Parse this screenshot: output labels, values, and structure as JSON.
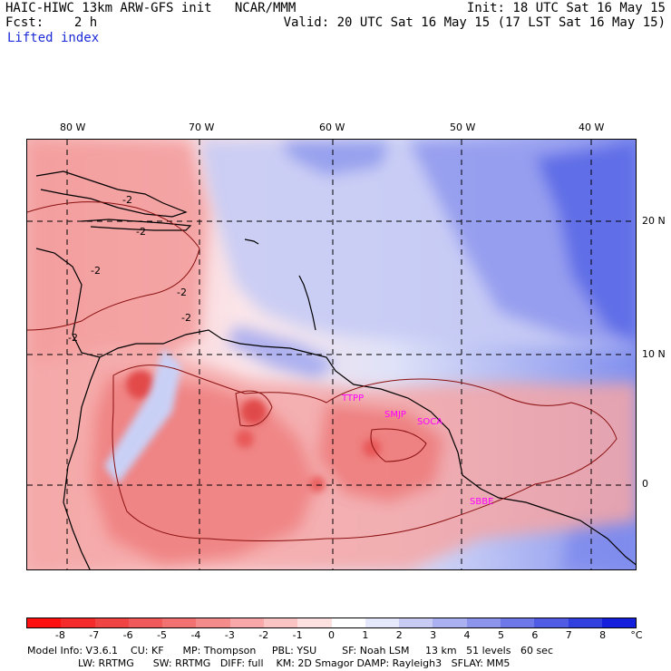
{
  "header": {
    "model_title": "HAIC-HIWC 13km ARW-GFS init   NCAR/MMM",
    "init_line": "Init: 18 UTC Sat 16 May 15",
    "fcst_line": "Fcst:    2 h",
    "valid_line": "Valid: 20 UTC Sat 16 May 15 (17 LST Sat 16 May 15)",
    "field_name": "Lifted index"
  },
  "map": {
    "longitude_labels": [
      "80 W",
      "70 W",
      "60 W",
      "50 W",
      "40 W"
    ],
    "latitude_labels": [
      "20 N",
      "10 N",
      "0"
    ],
    "contour_labels": [
      "-2",
      "-2",
      "-2",
      "-2",
      "-2",
      "-2"
    ],
    "station_labels": [
      "TTPP",
      "SMJP",
      "SOCA",
      "SBBE"
    ],
    "colors": {
      "positive": "#5a6ff0",
      "negative": "#f07070",
      "neutral": "#f6f0f6",
      "station": "#ff00ff",
      "contour": "#8a1010",
      "coast": "#000000"
    }
  },
  "colorbar": {
    "tick_labels": [
      "-8",
      "-7",
      "-6",
      "-5",
      "-4",
      "-3",
      "-2",
      "-1",
      "0",
      "1",
      "2",
      "3",
      "4",
      "5",
      "6",
      "7",
      "8"
    ],
    "unit": "°C",
    "colors": [
      "#ff1010",
      "#f52a2a",
      "#f04444",
      "#f05a5a",
      "#f27272",
      "#f58c8c",
      "#f8a8a8",
      "#fbc4c4",
      "#fde0e0",
      "#ffffff",
      "#e6e8fb",
      "#c8ccf5",
      "#aab0f0",
      "#8c94ec",
      "#6e78e8",
      "#505ce4",
      "#3240e0",
      "#1420dc"
    ]
  },
  "footer": {
    "line1": "Model Info: V3.6.1    CU: KF      MP: Thompson     PBL: YSU        SF: Noah LSM     13 km   51 levels   60 sec",
    "line2": "                LW: RRTMG      SW: RRTMG   DIFF: full    KM: 2D Smagor DAMP: Rayleigh3   SFLAY: MM5"
  }
}
